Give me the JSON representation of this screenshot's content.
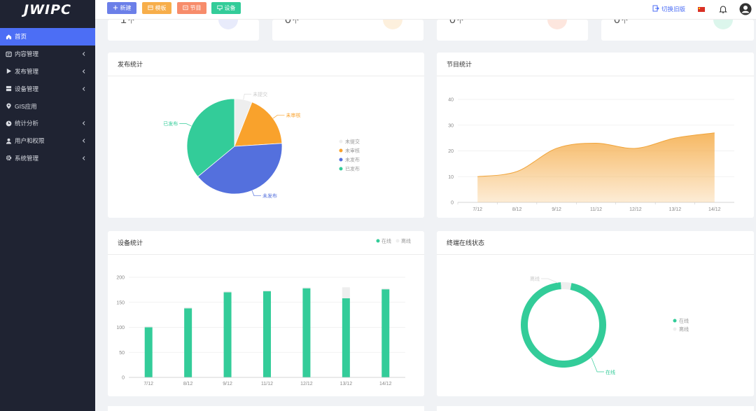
{
  "brand": "JWIPC",
  "sidebar": {
    "items": [
      {
        "label": "首页",
        "icon": "home-icon",
        "active": true,
        "has_children": false
      },
      {
        "label": "内容管理",
        "icon": "content-icon",
        "active": false,
        "has_children": true
      },
      {
        "label": "发布管理",
        "icon": "play-icon",
        "active": false,
        "has_children": true
      },
      {
        "label": "设备管理",
        "icon": "device-icon",
        "active": false,
        "has_children": true
      },
      {
        "label": "GIS应用",
        "icon": "location-pin-icon",
        "active": false,
        "has_children": false
      },
      {
        "label": "统计分析",
        "icon": "clock-icon",
        "active": false,
        "has_children": true
      },
      {
        "label": "用户和权限",
        "icon": "user-icon",
        "active": false,
        "has_children": true
      },
      {
        "label": "系统管理",
        "icon": "gear-icon",
        "active": false,
        "has_children": true
      }
    ]
  },
  "topbar": {
    "buttons": [
      {
        "label": "新建",
        "icon": "plus-icon",
        "color": "#6b7fe8"
      },
      {
        "label": "模板",
        "icon": "template-icon",
        "color": "#f7ae4a"
      },
      {
        "label": "节目",
        "icon": "program-icon",
        "color": "#f78c6b"
      },
      {
        "label": "设备",
        "icon": "monitor-icon",
        "color": "#33cc99"
      }
    ],
    "switch_label": "切换旧版",
    "language": "中文",
    "notification_icon": "bell-icon",
    "user_icon": "user-avatar-icon"
  },
  "stats": [
    {
      "value": "1",
      "unit": "个",
      "accent": "#6b7fe8"
    },
    {
      "value": "0",
      "unit": "个",
      "accent": "#f7ae4a"
    },
    {
      "value": "0",
      "unit": "个",
      "accent": "#f78c6b"
    },
    {
      "value": "0",
      "unit": "个",
      "accent": "#33cc99"
    }
  ],
  "panels": {
    "publish": {
      "title": "发布统计"
    },
    "program": {
      "title": "节目统计"
    },
    "device": {
      "title": "设备统计"
    },
    "terminal": {
      "title": "终端在线状态"
    }
  },
  "chart_data": [
    {
      "id": "publish",
      "type": "pie",
      "slices": [
        {
          "name": "未提交",
          "value": 6,
          "color": "#eeeeee"
        },
        {
          "name": "未审核",
          "value": 18,
          "color": "#f9a22c"
        },
        {
          "name": "未发布",
          "value": 40,
          "color": "#5470dd"
        },
        {
          "name": "已发布",
          "value": 36,
          "color": "#33cc99"
        }
      ],
      "legend": [
        "未提交",
        "未审核",
        "未发布",
        "已发布"
      ],
      "labels": [
        "未提交",
        "未审核",
        "未发布",
        "已发布"
      ],
      "legend_position": "right"
    },
    {
      "id": "program",
      "type": "area",
      "categories": [
        "7/12",
        "8/12",
        "9/12",
        "11/12",
        "12/12",
        "13/12",
        "14/12"
      ],
      "values": [
        10,
        12,
        21,
        23,
        21,
        25,
        27
      ],
      "ylim": [
        0,
        40
      ],
      "yticks": [
        0,
        10,
        20,
        30,
        40
      ],
      "color": "#f6b45a",
      "grid": true
    },
    {
      "id": "device",
      "type": "bar",
      "categories": [
        "7/12",
        "8/12",
        "9/12",
        "11/12",
        "12/12",
        "13/12",
        "14/12"
      ],
      "series": [
        {
          "name": "在线",
          "values": [
            100,
            138,
            170,
            172,
            178,
            158,
            176
          ],
          "color": "#33cc99"
        },
        {
          "name": "离线",
          "values": [
            2,
            2,
            2,
            2,
            2,
            22,
            2
          ],
          "color": "#eeeeee"
        }
      ],
      "ylim": [
        0,
        200
      ],
      "yticks": [
        0,
        50,
        100,
        150,
        200
      ],
      "legend": [
        "在线",
        "离线"
      ],
      "legend_position": "top-right",
      "grid": true
    },
    {
      "id": "terminal",
      "type": "pie",
      "donut": true,
      "slices": [
        {
          "name": "在线",
          "value": 96,
          "color": "#33cc99"
        },
        {
          "name": "离线",
          "value": 4,
          "color": "#eeeeee"
        }
      ],
      "legend": [
        "在线",
        "离线"
      ],
      "labels": [
        "离线",
        "在线"
      ],
      "legend_position": "right"
    }
  ]
}
